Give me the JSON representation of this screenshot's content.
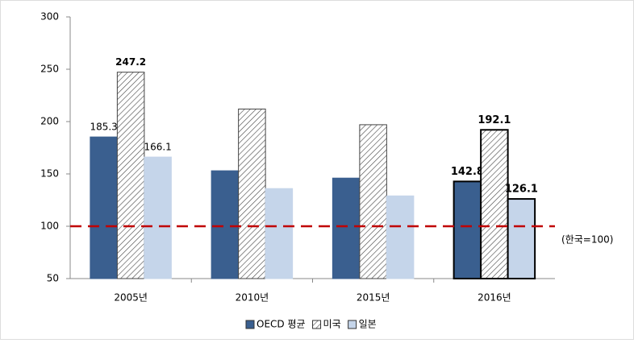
{
  "chart_data": {
    "type": "bar",
    "categories": [
      "2005년",
      "2010년",
      "2015년",
      "2016년"
    ],
    "series": [
      {
        "name": "OECD 평균",
        "color": "#3a5f8f",
        "values": [
          185.3,
          153,
          146,
          142.8
        ],
        "value_labels": [
          "185.3",
          null,
          null,
          "142.8"
        ]
      },
      {
        "name": "미국",
        "color": "#ffffff",
        "pattern": "hatch",
        "values": [
          247.2,
          212,
          197,
          192.1
        ],
        "value_labels": [
          "247.2",
          null,
          null,
          "192.1"
        ]
      },
      {
        "name": "일본",
        "color": "#c5d5ea",
        "values": [
          166.1,
          136,
          129,
          126.1
        ],
        "value_labels": [
          "166.1",
          null,
          null,
          "126.1"
        ]
      }
    ],
    "ylim": [
      50,
      300
    ],
    "yticks": [
      50,
      100,
      150,
      200,
      250,
      300
    ],
    "reference_line": {
      "value": 100,
      "label": "(한국=100)",
      "color": "#c00000"
    },
    "legend": "bottom"
  }
}
